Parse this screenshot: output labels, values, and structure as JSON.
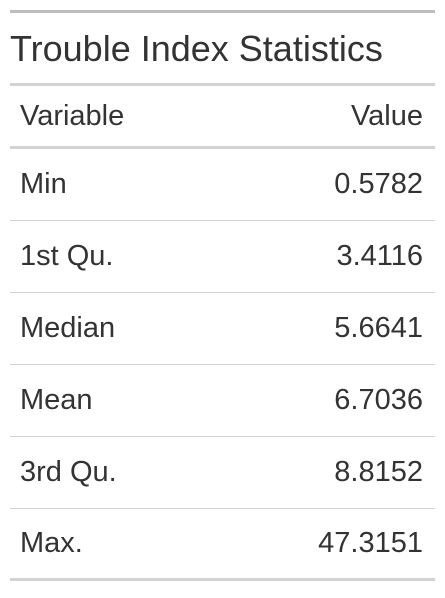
{
  "table": {
    "title": "Trouble Index Statistics",
    "columns": [
      "Variable",
      "Value"
    ],
    "rows": [
      {
        "variable": "Min",
        "value": "0.5782"
      },
      {
        "variable": "1st Qu.",
        "value": "3.4116"
      },
      {
        "variable": "Median",
        "value": "5.6641"
      },
      {
        "variable": "Mean",
        "value": "6.7036"
      },
      {
        "variable": "3rd Qu.",
        "value": "8.8152"
      },
      {
        "variable": "Max.",
        "value": "47.3151"
      }
    ]
  }
}
